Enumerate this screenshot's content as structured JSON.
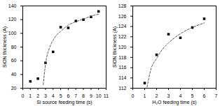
{
  "chart_data": [
    {
      "type": "scatter",
      "x_label": "Si source feeding time (s)",
      "y_label": "SiON thickness (A)",
      "xlim": [
        0,
        11
      ],
      "xticks": [
        0,
        1,
        2,
        3,
        4,
        5,
        6,
        7,
        8,
        9,
        10,
        11
      ],
      "ylim": [
        20,
        140
      ],
      "yticks": [
        20,
        40,
        60,
        80,
        100,
        120,
        140
      ],
      "grid": false,
      "series": [
        {
          "type": "scatter",
          "marker": "square",
          "color": "#000000",
          "x": [
            1,
            2,
            3,
            4,
            5,
            6,
            7,
            8,
            9,
            10
          ],
          "values": [
            30,
            34,
            57,
            73,
            109,
            108,
            118,
            120,
            124,
            132
          ]
        },
        {
          "type": "line",
          "line_style": "dashed",
          "color": "#555555",
          "x": [
            2.7,
            3.0,
            3.5,
            4,
            4.5,
            5,
            6,
            7,
            8,
            9,
            10
          ],
          "values": [
            25,
            55,
            78,
            90,
            98,
            103,
            112,
            117,
            121,
            125,
            128
          ]
        }
      ]
    },
    {
      "type": "scatter",
      "x_label": "H₂O feeding time (s)",
      "y_label": "SiON thickness (A)",
      "xlim": [
        0,
        7
      ],
      "xticks": [
        0,
        1,
        2,
        3,
        4,
        5,
        6,
        7
      ],
      "ylim": [
        112,
        128
      ],
      "yticks": [
        112,
        114,
        116,
        118,
        120,
        122,
        124,
        126,
        128
      ],
      "grid": false,
      "series": [
        {
          "type": "scatter",
          "marker": "square",
          "color": "#000000",
          "x": [
            1,
            2,
            3,
            4,
            5,
            6
          ],
          "values": [
            113,
            118.5,
            122.5,
            121.8,
            123.8,
            125.5
          ]
        },
        {
          "type": "line",
          "line_style": "dashed",
          "color": "#555555",
          "x": [
            1.2,
            1.5,
            2,
            2.5,
            3,
            4,
            5,
            6
          ],
          "values": [
            112.2,
            115.5,
            117.8,
            119.6,
            120.8,
            122.6,
            123.8,
            124.7
          ]
        }
      ]
    }
  ]
}
